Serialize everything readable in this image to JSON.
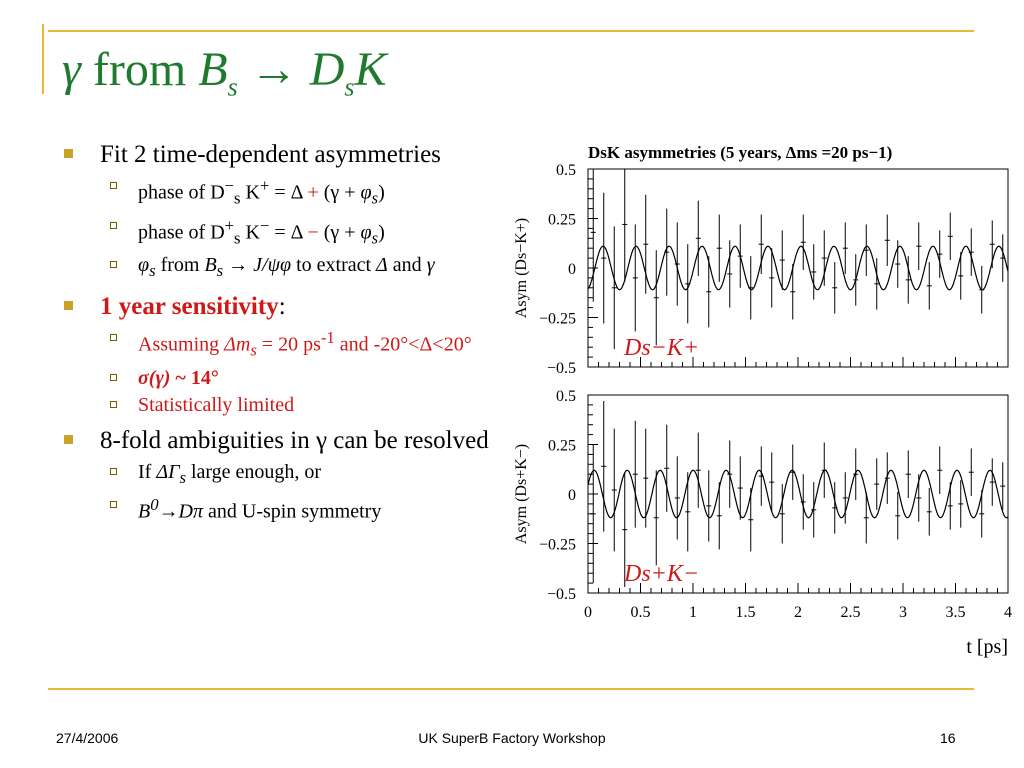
{
  "slide": {
    "title": {
      "gamma": "γ",
      "from": "from",
      "B": "B",
      "s1": "s",
      "arrow": "→",
      "D": "D",
      "s2": "s",
      "K": "K"
    },
    "footer_date": "27/4/2006",
    "footer_center": "UK SuperB Factory Workshop",
    "page_number": "16"
  },
  "bullets": {
    "b1": "Fit 2 time-dependent asymmetries",
    "b1_1": {
      "a": "phase of  D",
      "sup": "−",
      "sub": "s",
      "b": " K",
      "sup2": "+",
      "c": " = Δ ",
      "op": "+",
      "d": " (γ + ",
      "phi": "φ",
      "phisub": "s",
      "e": ")"
    },
    "b1_2": {
      "a": "phase of  D",
      "sup": "+",
      "sub": "s",
      "b": " K",
      "sup2": "−",
      "c": " = Δ ",
      "op": "−",
      "d": " (γ + ",
      "phi": "φ",
      "phisub": "s",
      "e": ")"
    },
    "b1_3": {
      "phi": "φ",
      "phisub": "s",
      "a": " from ",
      "B": "B",
      "Bsub": "s",
      "b": " → ",
      "c": "J/ψφ",
      "d": " to extract ",
      "e": "Δ",
      "f": " and ",
      "g": "γ"
    },
    "b2": {
      "label": "1 year sensitivity",
      "colon": ":"
    },
    "b2_1": {
      "a": "Assuming ",
      "dm": "Δm",
      "sub": "s",
      "b": " = 20 ps",
      "sup": "-1",
      "c": " and  -20°<Δ<20°"
    },
    "b2_2": {
      "a": "σ(γ)",
      "b": " ~ 14°"
    },
    "b2_3": "Statistically limited",
    "b3": "8-fold ambiguities in γ can be resolved",
    "b3_1": {
      "a": "If ",
      "dg": "ΔΓ",
      "sub": "s",
      "b": " large enough, or"
    },
    "b3_2": {
      "B": "B",
      "sup": "0",
      "arrow": "→",
      "Dpi": "Dπ",
      "rest": " and U-spin symmetry"
    }
  },
  "colors": {
    "title_green": "#1f7a2e",
    "accent_red": "#d01818",
    "rule_gold": "#e8b830",
    "bullet_gold": "#c9a227"
  },
  "chart_data": [
    {
      "type": "scatter",
      "title": "DsK asymmetries (5 years, Δms =20 ps−1)",
      "ylabel": "Asym (Ds−K+)",
      "label": "Ds−K+",
      "xlim": [
        0,
        4
      ],
      "ylim": [
        -0.5,
        0.5
      ],
      "yticks": [
        "0.5",
        "0.25",
        "0",
        "−0.25",
        "−0.5"
      ],
      "fit": {
        "amplitude": 0.11,
        "frequency_rad_per_ps": 20,
        "phase_rad": -1.3
      },
      "points": [
        {
          "x": 0.05,
          "y": 0.18,
          "e": 0.35
        },
        {
          "x": 0.15,
          "y": 0.05,
          "e": 0.33
        },
        {
          "x": 0.25,
          "y": -0.1,
          "e": 0.31
        },
        {
          "x": 0.35,
          "y": 0.22,
          "e": 0.29
        },
        {
          "x": 0.45,
          "y": -0.05,
          "e": 0.27
        },
        {
          "x": 0.55,
          "y": 0.12,
          "e": 0.25
        },
        {
          "x": 0.65,
          "y": -0.15,
          "e": 0.24
        },
        {
          "x": 0.75,
          "y": 0.08,
          "e": 0.22
        },
        {
          "x": 0.85,
          "y": 0.02,
          "e": 0.21
        },
        {
          "x": 0.95,
          "y": -0.08,
          "e": 0.2
        },
        {
          "x": 1.05,
          "y": 0.15,
          "e": 0.19
        },
        {
          "x": 1.15,
          "y": -0.12,
          "e": 0.18
        },
        {
          "x": 1.25,
          "y": 0.1,
          "e": 0.17
        },
        {
          "x": 1.35,
          "y": -0.03,
          "e": 0.17
        },
        {
          "x": 1.45,
          "y": 0.06,
          "e": 0.16
        },
        {
          "x": 1.55,
          "y": -0.1,
          "e": 0.16
        },
        {
          "x": 1.65,
          "y": 0.12,
          "e": 0.15
        },
        {
          "x": 1.75,
          "y": -0.05,
          "e": 0.15
        },
        {
          "x": 1.85,
          "y": 0.04,
          "e": 0.15
        },
        {
          "x": 1.95,
          "y": -0.12,
          "e": 0.14
        },
        {
          "x": 2.05,
          "y": 0.13,
          "e": 0.14
        },
        {
          "x": 2.15,
          "y": -0.02,
          "e": 0.14
        },
        {
          "x": 2.25,
          "y": 0.05,
          "e": 0.14
        },
        {
          "x": 2.35,
          "y": -0.1,
          "e": 0.13
        },
        {
          "x": 2.45,
          "y": 0.1,
          "e": 0.13
        },
        {
          "x": 2.55,
          "y": -0.06,
          "e": 0.13
        },
        {
          "x": 2.65,
          "y": 0.09,
          "e": 0.13
        },
        {
          "x": 2.75,
          "y": -0.08,
          "e": 0.13
        },
        {
          "x": 2.85,
          "y": 0.14,
          "e": 0.13
        },
        {
          "x": 2.95,
          "y": 0.02,
          "e": 0.12
        },
        {
          "x": 3.05,
          "y": -0.06,
          "e": 0.12
        },
        {
          "x": 3.15,
          "y": 0.11,
          "e": 0.12
        },
        {
          "x": 3.25,
          "y": -0.09,
          "e": 0.12
        },
        {
          "x": 3.35,
          "y": 0.07,
          "e": 0.12
        },
        {
          "x": 3.45,
          "y": 0.16,
          "e": 0.12
        },
        {
          "x": 3.55,
          "y": -0.04,
          "e": 0.12
        },
        {
          "x": 3.65,
          "y": 0.08,
          "e": 0.12
        },
        {
          "x": 3.75,
          "y": -0.11,
          "e": 0.12
        },
        {
          "x": 3.85,
          "y": 0.12,
          "e": 0.12
        },
        {
          "x": 3.95,
          "y": 0.05,
          "e": 0.12
        }
      ]
    },
    {
      "type": "scatter",
      "ylabel": "Asym (Ds+K−)",
      "label": "Ds+K−",
      "xlabel": "t [ps]",
      "xlim": [
        0,
        4
      ],
      "ylim": [
        -0.5,
        0.5
      ],
      "yticks": [
        "0.5",
        "0.25",
        "0",
        "−0.25",
        "−0.5"
      ],
      "xticks": [
        "0",
        "0.5",
        "1",
        "1.5",
        "2",
        "2.5",
        "3",
        "3.5",
        "4"
      ],
      "fit": {
        "amplitude": 0.12,
        "frequency_rad_per_ps": 20,
        "phase_rad": 0.4
      },
      "points": [
        {
          "x": 0.05,
          "y": -0.1,
          "e": 0.35
        },
        {
          "x": 0.15,
          "y": 0.14,
          "e": 0.33
        },
        {
          "x": 0.25,
          "y": 0.02,
          "e": 0.31
        },
        {
          "x": 0.35,
          "y": -0.18,
          "e": 0.29
        },
        {
          "x": 0.45,
          "y": 0.1,
          "e": 0.27
        },
        {
          "x": 0.55,
          "y": 0.08,
          "e": 0.25
        },
        {
          "x": 0.65,
          "y": -0.12,
          "e": 0.24
        },
        {
          "x": 0.75,
          "y": 0.13,
          "e": 0.22
        },
        {
          "x": 0.85,
          "y": -0.02,
          "e": 0.21
        },
        {
          "x": 0.95,
          "y": -0.09,
          "e": 0.2
        },
        {
          "x": 1.05,
          "y": 0.12,
          "e": 0.19
        },
        {
          "x": 1.15,
          "y": -0.06,
          "e": 0.18
        },
        {
          "x": 1.25,
          "y": -0.11,
          "e": 0.17
        },
        {
          "x": 1.35,
          "y": 0.1,
          "e": 0.17
        },
        {
          "x": 1.45,
          "y": 0.03,
          "e": 0.16
        },
        {
          "x": 1.55,
          "y": -0.13,
          "e": 0.16
        },
        {
          "x": 1.65,
          "y": 0.09,
          "e": 0.15
        },
        {
          "x": 1.75,
          "y": 0.06,
          "e": 0.15
        },
        {
          "x": 1.85,
          "y": -0.1,
          "e": 0.15
        },
        {
          "x": 1.95,
          "y": 0.11,
          "e": 0.14
        },
        {
          "x": 2.05,
          "y": -0.04,
          "e": 0.14
        },
        {
          "x": 2.15,
          "y": -0.08,
          "e": 0.14
        },
        {
          "x": 2.25,
          "y": 0.12,
          "e": 0.14
        },
        {
          "x": 2.35,
          "y": -0.07,
          "e": 0.13
        },
        {
          "x": 2.45,
          "y": -0.02,
          "e": 0.13
        },
        {
          "x": 2.55,
          "y": 0.1,
          "e": 0.13
        },
        {
          "x": 2.65,
          "y": -0.12,
          "e": 0.13
        },
        {
          "x": 2.75,
          "y": 0.05,
          "e": 0.13
        },
        {
          "x": 2.85,
          "y": 0.08,
          "e": 0.13
        },
        {
          "x": 2.95,
          "y": -0.11,
          "e": 0.12
        },
        {
          "x": 3.05,
          "y": 0.1,
          "e": 0.12
        },
        {
          "x": 3.15,
          "y": -0.02,
          "e": 0.12
        },
        {
          "x": 3.25,
          "y": -0.09,
          "e": 0.12
        },
        {
          "x": 3.35,
          "y": 0.12,
          "e": 0.12
        },
        {
          "x": 3.45,
          "y": -0.06,
          "e": 0.12
        },
        {
          "x": 3.55,
          "y": -0.05,
          "e": 0.12
        },
        {
          "x": 3.65,
          "y": 0.11,
          "e": 0.12
        },
        {
          "x": 3.75,
          "y": -0.1,
          "e": 0.12
        },
        {
          "x": 3.85,
          "y": 0.06,
          "e": 0.12
        },
        {
          "x": 3.95,
          "y": 0.04,
          "e": 0.12
        }
      ]
    }
  ]
}
